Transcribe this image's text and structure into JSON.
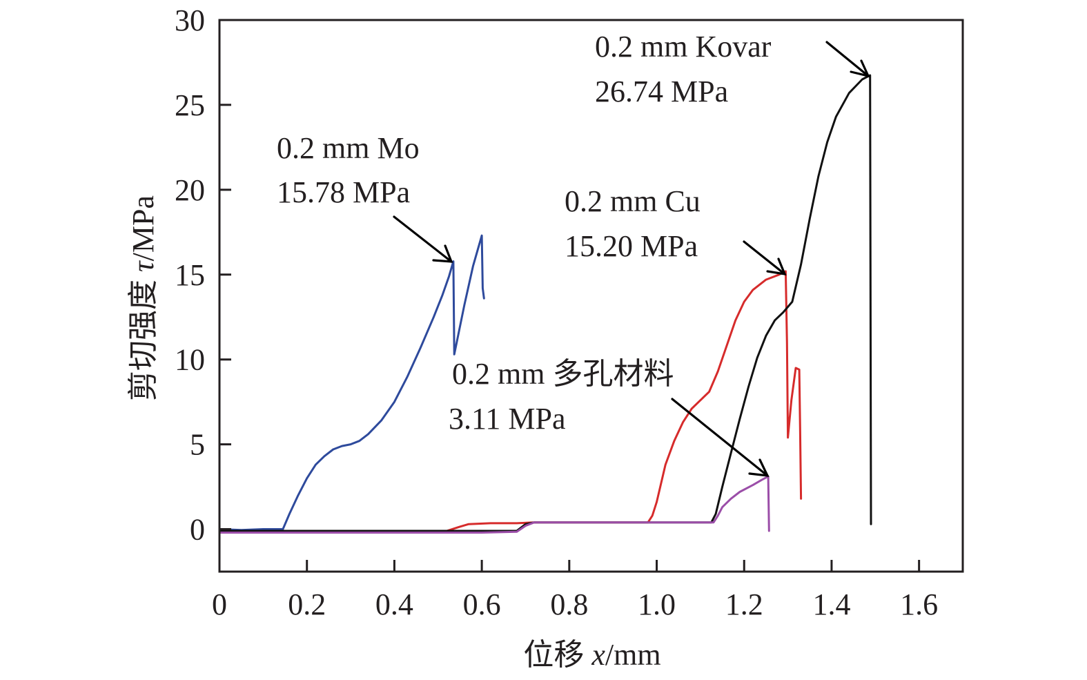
{
  "chart_data": {
    "type": "line",
    "title": "",
    "xlabel": "位移 x/mm",
    "xlabel_parts": {
      "prefix": "位移 ",
      "var": "x",
      "unit": "/mm"
    },
    "ylabel": "剪切强度 τ/MPa",
    "ylabel_parts": {
      "prefix": "剪切强度 ",
      "var": "τ",
      "unit": "/MPa"
    },
    "xlim": [
      0,
      1.7
    ],
    "ylim": [
      -2.5,
      30
    ],
    "grid": false,
    "legend": "none (inline annotations)",
    "x_ticks": [
      0,
      0.2,
      0.4,
      0.6,
      0.8,
      1.0,
      1.2,
      1.4,
      1.6
    ],
    "x_tick_labels": [
      "0",
      "0.2",
      "0.4",
      "0.6",
      "0.8",
      "1.0",
      "1.2",
      "1.4",
      "1.6"
    ],
    "y_ticks": [
      0,
      5,
      10,
      15,
      20,
      25,
      30
    ],
    "y_tick_labels": [
      "0",
      "5",
      "10",
      "15",
      "20",
      "25",
      "30"
    ],
    "series": [
      {
        "name": "0.2 mm Mo",
        "color": "#2e4a9c",
        "points": [
          [
            0,
            0.0
          ],
          [
            0.05,
            -0.05
          ],
          [
            0.1,
            0.0
          ],
          [
            0.145,
            0.0
          ],
          [
            0.16,
            0.9
          ],
          [
            0.18,
            2.0
          ],
          [
            0.2,
            3.0
          ],
          [
            0.22,
            3.8
          ],
          [
            0.24,
            4.3
          ],
          [
            0.26,
            4.7
          ],
          [
            0.28,
            4.9
          ],
          [
            0.3,
            5.0
          ],
          [
            0.32,
            5.2
          ],
          [
            0.34,
            5.6
          ],
          [
            0.37,
            6.4
          ],
          [
            0.4,
            7.5
          ],
          [
            0.43,
            9.0
          ],
          [
            0.46,
            10.7
          ],
          [
            0.49,
            12.5
          ],
          [
            0.51,
            13.8
          ],
          [
            0.525,
            14.9
          ],
          [
            0.535,
            15.78
          ],
          [
            0.537,
            10.3
          ],
          [
            0.56,
            13.2
          ],
          [
            0.58,
            15.5
          ],
          [
            0.6,
            17.3
          ],
          [
            0.602,
            14.2
          ],
          [
            0.605,
            13.6
          ]
        ]
      },
      {
        "name": "0.2 mm Cu",
        "color": "#d62b2b",
        "points": [
          [
            0,
            -0.15
          ],
          [
            0.2,
            -0.15
          ],
          [
            0.4,
            -0.15
          ],
          [
            0.52,
            -0.1
          ],
          [
            0.55,
            0.15
          ],
          [
            0.57,
            0.3
          ],
          [
            0.62,
            0.35
          ],
          [
            0.68,
            0.35
          ],
          [
            0.72,
            0.4
          ],
          [
            0.85,
            0.4
          ],
          [
            0.98,
            0.4
          ],
          [
            0.99,
            0.8
          ],
          [
            1.0,
            1.6
          ],
          [
            1.02,
            3.8
          ],
          [
            1.04,
            5.2
          ],
          [
            1.06,
            6.3
          ],
          [
            1.08,
            7.1
          ],
          [
            1.1,
            7.6
          ],
          [
            1.12,
            8.1
          ],
          [
            1.14,
            9.3
          ],
          [
            1.16,
            10.8
          ],
          [
            1.18,
            12.3
          ],
          [
            1.2,
            13.4
          ],
          [
            1.22,
            14.1
          ],
          [
            1.25,
            14.7
          ],
          [
            1.28,
            15.0
          ],
          [
            1.295,
            15.2
          ],
          [
            1.298,
            11.0
          ],
          [
            1.3,
            5.4
          ],
          [
            1.308,
            7.6
          ],
          [
            1.318,
            9.5
          ],
          [
            1.326,
            9.4
          ],
          [
            1.328,
            6.0
          ],
          [
            1.33,
            1.8
          ]
        ]
      },
      {
        "name": "0.2 mm Kovar",
        "color": "#111111",
        "points": [
          [
            0,
            -0.1
          ],
          [
            0.3,
            -0.1
          ],
          [
            0.68,
            -0.1
          ],
          [
            0.7,
            0.3
          ],
          [
            0.72,
            0.4
          ],
          [
            0.9,
            0.4
          ],
          [
            1.125,
            0.4
          ],
          [
            1.135,
            0.9
          ],
          [
            1.15,
            2.5
          ],
          [
            1.17,
            4.5
          ],
          [
            1.19,
            6.5
          ],
          [
            1.21,
            8.4
          ],
          [
            1.23,
            10.1
          ],
          [
            1.25,
            11.4
          ],
          [
            1.27,
            12.3
          ],
          [
            1.29,
            12.8
          ],
          [
            1.31,
            13.4
          ],
          [
            1.33,
            15.6
          ],
          [
            1.35,
            18.3
          ],
          [
            1.37,
            20.8
          ],
          [
            1.39,
            22.8
          ],
          [
            1.41,
            24.3
          ],
          [
            1.44,
            25.7
          ],
          [
            1.47,
            26.5
          ],
          [
            1.488,
            26.74
          ],
          [
            1.49,
            0.3
          ]
        ]
      },
      {
        "name": "0.2 mm 多孔材料",
        "color": "#9b4ea8",
        "points": [
          [
            0,
            -0.2
          ],
          [
            0.2,
            -0.2
          ],
          [
            0.4,
            -0.2
          ],
          [
            0.6,
            -0.2
          ],
          [
            0.68,
            -0.15
          ],
          [
            0.7,
            0.2
          ],
          [
            0.72,
            0.4
          ],
          [
            0.9,
            0.4
          ],
          [
            1.13,
            0.4
          ],
          [
            1.14,
            0.8
          ],
          [
            1.15,
            1.3
          ],
          [
            1.17,
            1.8
          ],
          [
            1.19,
            2.2
          ],
          [
            1.22,
            2.6
          ],
          [
            1.24,
            2.9
          ],
          [
            1.255,
            3.11
          ],
          [
            1.257,
            -0.1
          ]
        ]
      }
    ],
    "annotations": [
      {
        "series": "0.2 mm Mo",
        "line1": "0.2 mm Mo",
        "line2": "15.78 MPa",
        "value": 15.78,
        "point": [
          0.535,
          15.78
        ]
      },
      {
        "series": "0.2 mm Cu",
        "line1": "0.2 mm Cu",
        "line2": "15.20 MPa",
        "value": 15.2,
        "point": [
          1.295,
          15.2
        ]
      },
      {
        "series": "0.2 mm Kovar",
        "line1": "0.2 mm Kovar",
        "line2": "26.74 MPa",
        "value": 26.74,
        "point": [
          1.488,
          26.74
        ]
      },
      {
        "series": "0.2 mm 多孔材料",
        "line1": "0.2 mm 多孔材料",
        "line2": "3.11 MPa",
        "value": 3.11,
        "point": [
          1.255,
          3.11
        ]
      }
    ]
  }
}
